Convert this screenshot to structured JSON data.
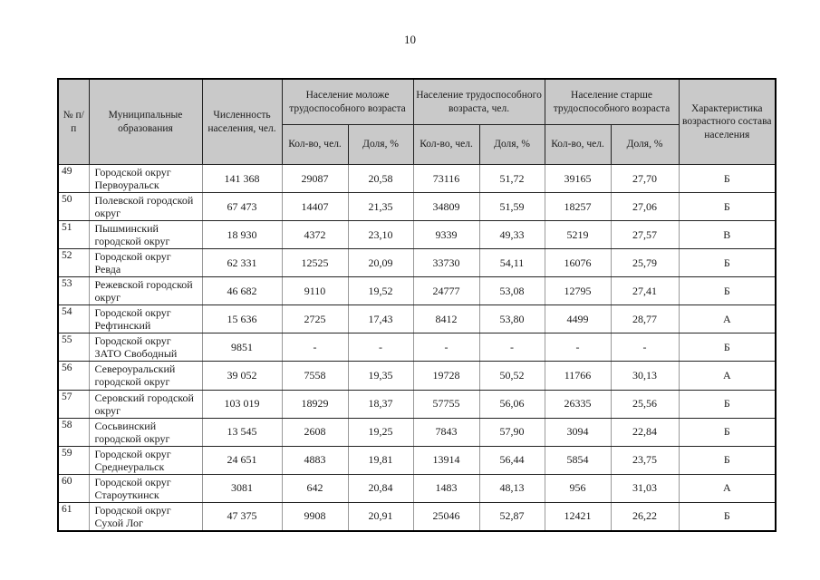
{
  "page": {
    "number": "10"
  },
  "colors": {
    "header_bg": "#c9c9c9",
    "border_dark": "#222222",
    "border_light": "#999999"
  },
  "table": {
    "headers": {
      "col_num": "№ п/п",
      "col_municipality": "Муниципальные образования",
      "col_population": "Численность населения, чел.",
      "group_younger": "Население моложе трудоспособного возраста",
      "group_working": "Население трудоспособного возраста, чел.",
      "group_older": "Население старше трудоспособного возраста",
      "col_characteristic": "Характеристика возрастного состава населения",
      "sub_count": "Кол-во, чел.",
      "sub_share": "Доля, %"
    },
    "rows": [
      {
        "num": "49",
        "name": "Городской округ Первоуральск",
        "population": "141 368",
        "younger_count": "29087",
        "younger_share": "20,58",
        "working_count": "73116",
        "working_share": "51,72",
        "older_count": "39165",
        "older_share": "27,70",
        "characteristic": "Б"
      },
      {
        "num": "50",
        "name": "Полевской городской округ",
        "population": "67 473",
        "younger_count": "14407",
        "younger_share": "21,35",
        "working_count": "34809",
        "working_share": "51,59",
        "older_count": "18257",
        "older_share": "27,06",
        "characteristic": "Б"
      },
      {
        "num": "51",
        "name": "Пышминский городской округ",
        "population": "18 930",
        "younger_count": "4372",
        "younger_share": "23,10",
        "working_count": "9339",
        "working_share": "49,33",
        "older_count": "5219",
        "older_share": "27,57",
        "characteristic": "В"
      },
      {
        "num": "52",
        "name": "Городской округ Ревда",
        "population": "62 331",
        "younger_count": "12525",
        "younger_share": "20,09",
        "working_count": "33730",
        "working_share": "54,11",
        "older_count": "16076",
        "older_share": "25,79",
        "characteristic": "Б"
      },
      {
        "num": "53",
        "name": "Режевской городской округ",
        "population": "46 682",
        "younger_count": "9110",
        "younger_share": "19,52",
        "working_count": "24777",
        "working_share": "53,08",
        "older_count": "12795",
        "older_share": "27,41",
        "characteristic": "Б"
      },
      {
        "num": "54",
        "name": "Городской округ Рефтинский",
        "population": "15 636",
        "younger_count": "2725",
        "younger_share": "17,43",
        "working_count": "8412",
        "working_share": "53,80",
        "older_count": "4499",
        "older_share": "28,77",
        "characteristic": "А"
      },
      {
        "num": "55",
        "name": "Городской округ ЗАТО Свободный",
        "population": "9851",
        "younger_count": "-",
        "younger_share": "-",
        "working_count": "-",
        "working_share": "-",
        "older_count": "-",
        "older_share": "-",
        "characteristic": "Б"
      },
      {
        "num": "56",
        "name": "Североуральский городской округ",
        "population": "39 052",
        "younger_count": "7558",
        "younger_share": "19,35",
        "working_count": "19728",
        "working_share": "50,52",
        "older_count": "11766",
        "older_share": "30,13",
        "characteristic": "А"
      },
      {
        "num": "57",
        "name": "Серовский городской округ",
        "population": "103 019",
        "younger_count": "18929",
        "younger_share": "18,37",
        "working_count": "57755",
        "working_share": "56,06",
        "older_count": "26335",
        "older_share": "25,56",
        "characteristic": "Б"
      },
      {
        "num": "58",
        "name": "Сосьвинский городской округ",
        "population": "13 545",
        "younger_count": "2608",
        "younger_share": "19,25",
        "working_count": "7843",
        "working_share": "57,90",
        "older_count": "3094",
        "older_share": "22,84",
        "characteristic": "Б"
      },
      {
        "num": "59",
        "name": "Городской округ Среднеуральск",
        "population": "24 651",
        "younger_count": "4883",
        "younger_share": "19,81",
        "working_count": "13914",
        "working_share": "56,44",
        "older_count": "5854",
        "older_share": "23,75",
        "characteristic": "Б"
      },
      {
        "num": "60",
        "name": "Городской округ Староуткинск",
        "population": "3081",
        "younger_count": "642",
        "younger_share": "20,84",
        "working_count": "1483",
        "working_share": "48,13",
        "older_count": "956",
        "older_share": "31,03",
        "characteristic": "А"
      },
      {
        "num": "61",
        "name": "Городской округ Сухой Лог",
        "population": "47 375",
        "younger_count": "9908",
        "younger_share": "20,91",
        "working_count": "25046",
        "working_share": "52,87",
        "older_count": "12421",
        "older_share": "26,22",
        "characteristic": "Б"
      }
    ]
  }
}
